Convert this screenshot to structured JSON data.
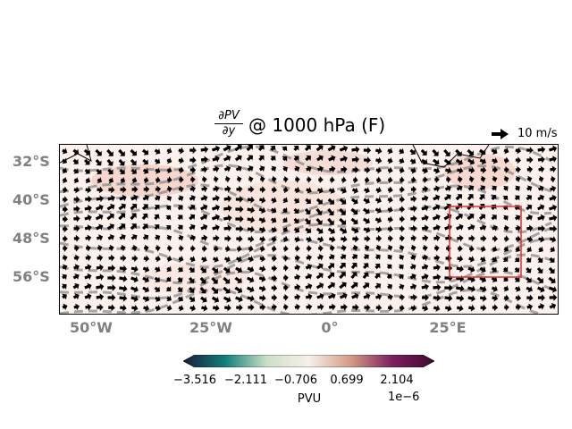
{
  "title": {
    "numerator": "∂PV",
    "denominator": "∂y",
    "suffix": "@ 1000 hPa (F)"
  },
  "reference_arrow": {
    "label": "10 m/s"
  },
  "lat_labels": [
    "32°S",
    "40°S",
    "48°S",
    "56°S"
  ],
  "lon_labels": [
    "50°W",
    "25°W",
    "0°",
    "25°E"
  ],
  "colorbar": {
    "ticks": [
      "−3.516",
      "−2.111",
      "−0.706",
      "0.699",
      "2.104"
    ],
    "label": "PVU",
    "offset": "1e−6",
    "colors": [
      "#1c1b3a",
      "#0f7f7a",
      "#cde0c7",
      "#f7f0ea",
      "#d49b84",
      "#7b1e60",
      "#3f0a2e"
    ]
  },
  "highlight_box": {
    "color": "#e03030"
  }
}
